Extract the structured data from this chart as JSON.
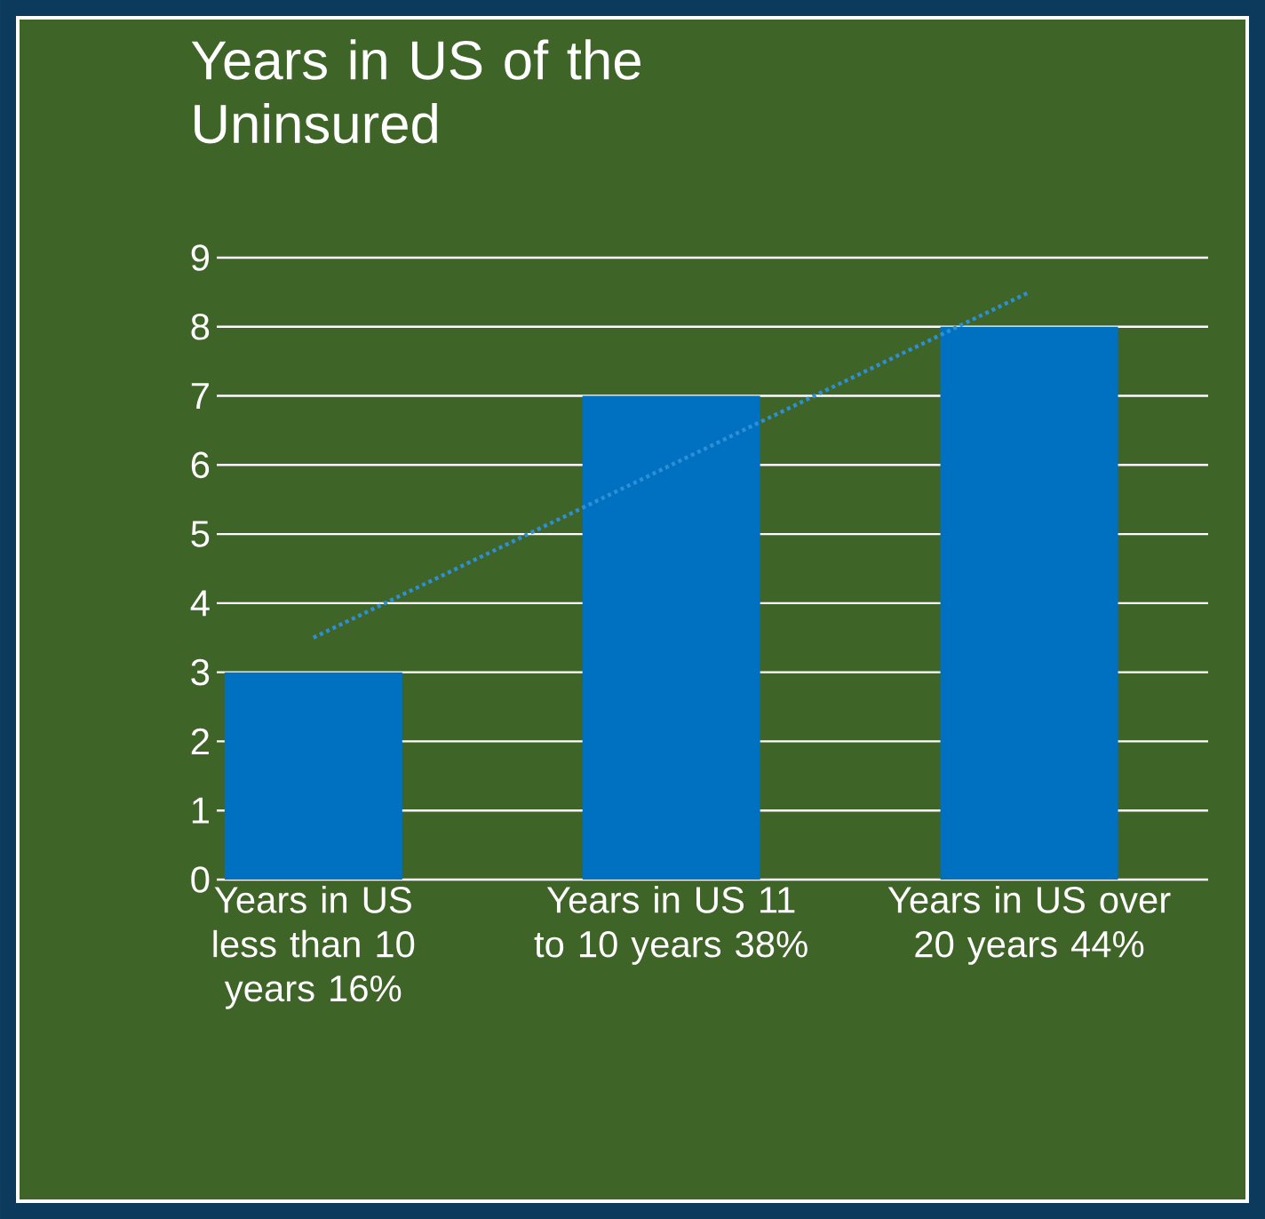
{
  "chart_data": {
    "type": "bar",
    "title": "Years in US of the Uninsured",
    "categories": [
      "Years in US less than 10 years 16%",
      "Years in US 11 to 10 years 38%",
      "Years in US over 20 years 44%"
    ],
    "series": [
      {
        "color": "#0070c0",
        "values": [
          3,
          7,
          8
        ]
      },
      {
        "type": "line",
        "color": "#2e8fd6",
        "line_style": "dotted",
        "marker": "none",
        "values": [
          3.5,
          6,
          8.5
        ]
      }
    ],
    "ylim": [
      0,
      9
    ],
    "yticks": [
      0,
      1,
      2,
      3,
      4,
      5,
      6,
      7,
      8,
      9
    ],
    "grid": "y"
  }
}
